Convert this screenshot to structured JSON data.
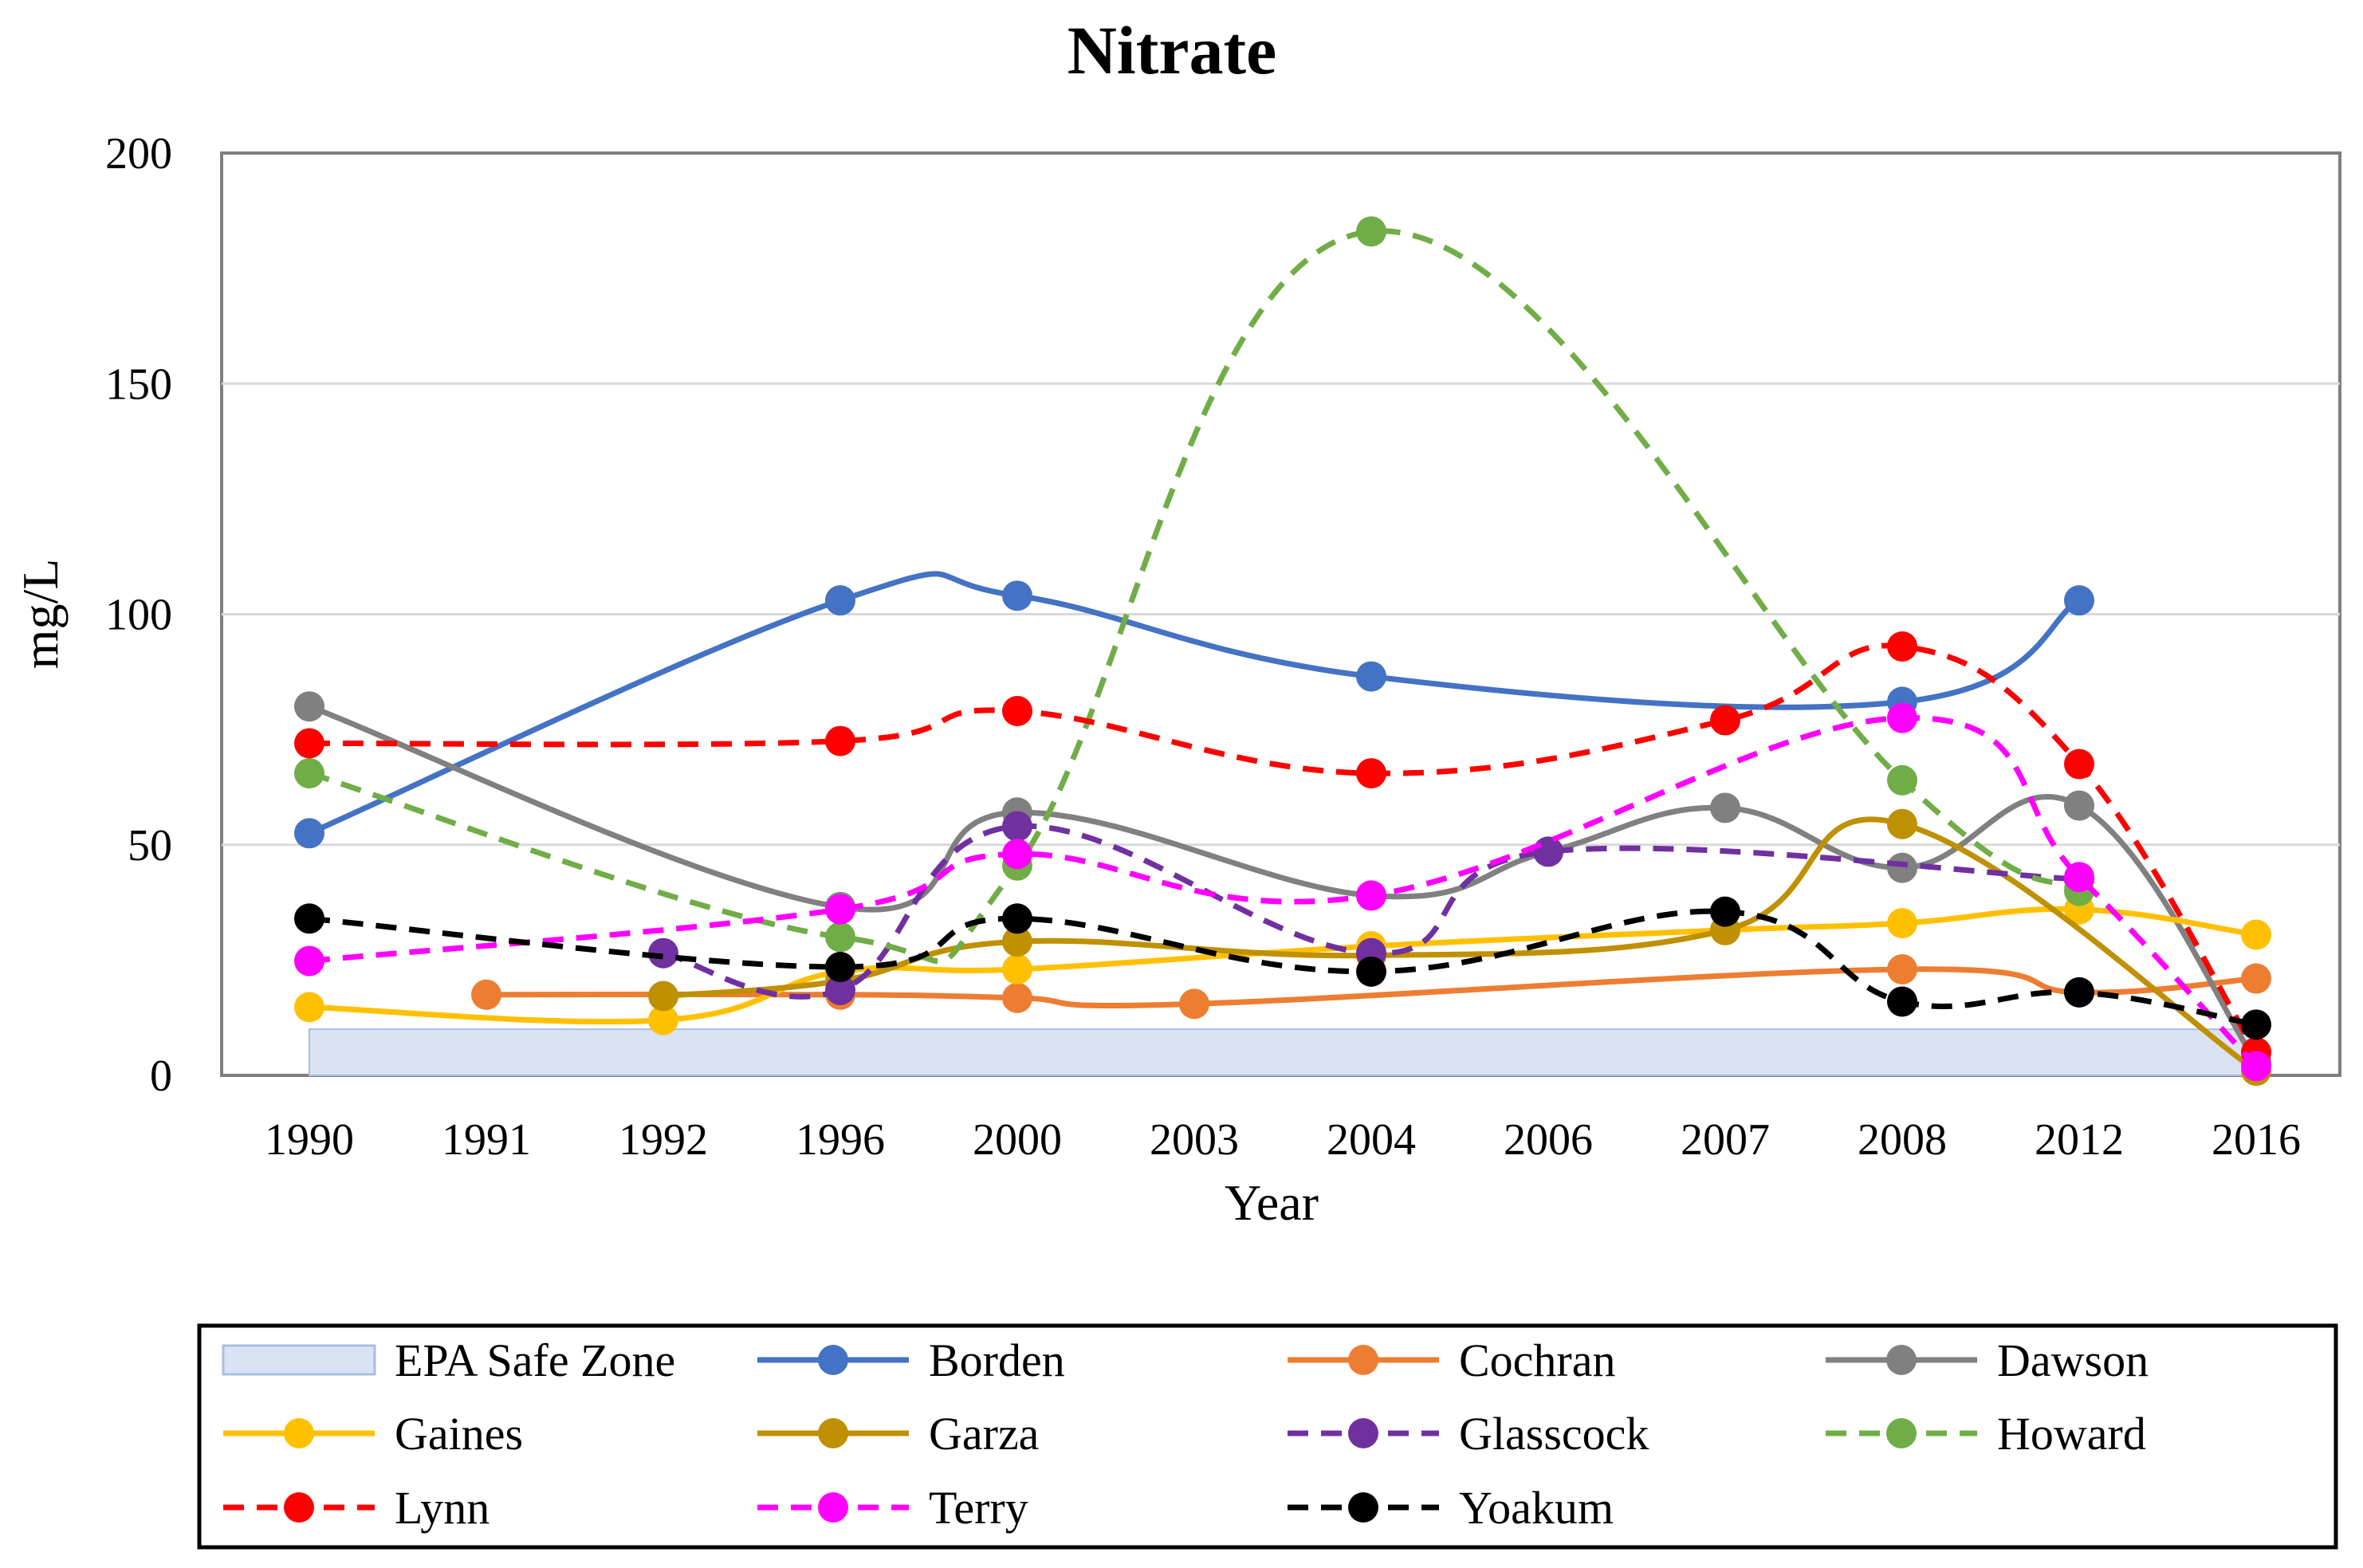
{
  "chart_data": {
    "type": "line",
    "title": "Nitrate",
    "xlabel": "Year",
    "ylabel": "mg/L",
    "ylim": [
      0,
      200
    ],
    "yticks": [
      0,
      50,
      100,
      150,
      200
    ],
    "grid": true,
    "legend_position": "bottom",
    "categories": [
      "1990",
      "1991",
      "1992",
      "1996",
      "2000",
      "2003",
      "2004",
      "2006",
      "2007",
      "2008",
      "2012",
      "2016"
    ],
    "safe_zone": {
      "name": "EPA Safe Zone",
      "value": 10,
      "color": "#dae3f3",
      "border": "#a9bde0"
    },
    "series": [
      {
        "name": "Borden",
        "color": "#4472c4",
        "dashed": false,
        "values": [
          52.5,
          null,
          null,
          103,
          104,
          null,
          86.5,
          null,
          null,
          81,
          103,
          null
        ]
      },
      {
        "name": "Cochran",
        "color": "#ed7d31",
        "dashed": false,
        "values": [
          null,
          17.5,
          null,
          17.5,
          16.8,
          15.5,
          null,
          null,
          null,
          23,
          18,
          21
        ]
      },
      {
        "name": "Dawson",
        "color": "#808080",
        "dashed": false,
        "values": [
          80,
          null,
          null,
          36.5,
          57,
          null,
          39,
          48.5,
          58,
          45,
          58.5,
          3
        ]
      },
      {
        "name": "Gaines",
        "color": "#ffc000",
        "dashed": false,
        "values": [
          14.8,
          null,
          12,
          22.5,
          23,
          null,
          28,
          null,
          31.5,
          33,
          36,
          30.5
        ]
      },
      {
        "name": "Garza",
        "color": "#bf9000",
        "dashed": false,
        "values": [
          null,
          null,
          17.2,
          20.5,
          29,
          null,
          26,
          null,
          31.5,
          54.5,
          null,
          1
        ]
      },
      {
        "name": "Glasscock",
        "color": "#7030a0",
        "dashed": true,
        "values": [
          null,
          null,
          26.5,
          18.5,
          54,
          null,
          26.5,
          48.5,
          null,
          null,
          42.5,
          null
        ]
      },
      {
        "name": "Howard",
        "color": "#70ad47",
        "dashed": true,
        "values": [
          65.5,
          null,
          null,
          30,
          45.5,
          null,
          183,
          null,
          null,
          64,
          40,
          null
        ]
      },
      {
        "name": "Lynn",
        "color": "#ff0000",
        "dashed": true,
        "values": [
          72,
          null,
          null,
          72.5,
          79,
          null,
          65.5,
          null,
          77,
          93,
          67.5,
          5
        ]
      },
      {
        "name": "Terry",
        "color": "#ff00ff",
        "dashed": true,
        "values": [
          24.8,
          null,
          null,
          36,
          48,
          null,
          39,
          null,
          null,
          77.5,
          43,
          2
        ]
      },
      {
        "name": "Yoakum",
        "color": "#000000",
        "dashed": true,
        "values": [
          34,
          null,
          null,
          23.5,
          34,
          null,
          22.5,
          null,
          35.5,
          16,
          18,
          11
        ]
      }
    ]
  }
}
